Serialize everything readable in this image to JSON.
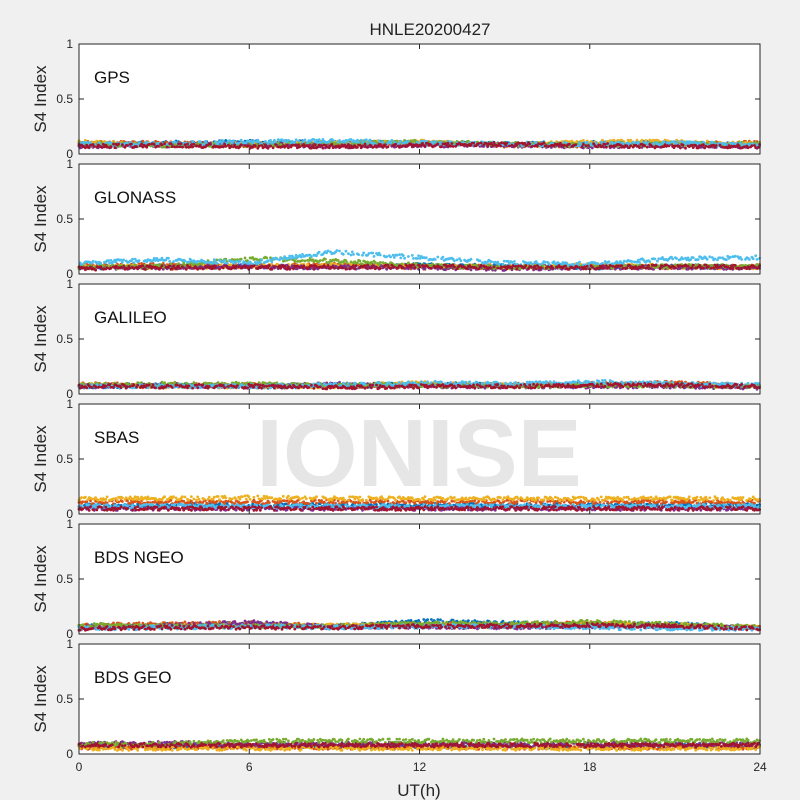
{
  "figure": {
    "title": "HNLE20200427",
    "xlabel": "UT(h)",
    "ylabel": "S4 Index",
    "watermark": "IONISE",
    "x_ticks": [
      "0",
      "6",
      "12",
      "18",
      "24"
    ],
    "y_ticks": [
      "0",
      "0.5",
      "1"
    ]
  },
  "colors": {
    "palette": [
      "#0072BD",
      "#D95319",
      "#EDB120",
      "#7E2F8E",
      "#77AC30",
      "#4DBEEE",
      "#A2142F"
    ],
    "axes_background": "#ffffff",
    "figure_background": "#f0f0f0"
  },
  "chart_data": [
    {
      "type": "scatter",
      "panel": "GPS",
      "xlim": [
        0,
        24
      ],
      "ylim": [
        0,
        1
      ],
      "grid": false,
      "series": [
        {
          "color": "#0072BD",
          "x": [
            0,
            3,
            6,
            9,
            12,
            15,
            18,
            21,
            24
          ],
          "y": [
            0.08,
            0.1,
            0.11,
            0.1,
            0.1,
            0.09,
            0.1,
            0.1,
            0.08
          ]
        },
        {
          "color": "#D95319",
          "x": [
            0,
            3,
            6,
            9,
            12,
            15,
            18,
            21,
            24
          ],
          "y": [
            0.1,
            0.1,
            0.08,
            0.09,
            0.1,
            0.08,
            0.08,
            0.09,
            0.1
          ]
        },
        {
          "color": "#EDB120",
          "x": [
            0,
            3,
            6,
            9,
            12,
            15,
            18,
            21,
            24
          ],
          "y": [
            0.11,
            0.08,
            0.09,
            0.1,
            0.11,
            0.08,
            0.11,
            0.11,
            0.09
          ]
        },
        {
          "color": "#7E2F8E",
          "x": [
            0,
            3,
            6,
            9,
            12,
            15,
            18,
            21,
            24
          ],
          "y": [
            0.07,
            0.08,
            0.09,
            0.07,
            0.08,
            0.08,
            0.07,
            0.08,
            0.07
          ]
        },
        {
          "color": "#77AC30",
          "x": [
            0,
            3,
            6,
            9,
            12,
            15,
            18,
            21,
            24
          ],
          "y": [
            0.09,
            0.08,
            0.08,
            0.1,
            0.11,
            0.09,
            0.08,
            0.09,
            0.09
          ]
        },
        {
          "color": "#4DBEEE",
          "x": [
            0,
            3,
            6,
            9,
            12,
            15,
            18,
            21,
            24
          ],
          "y": [
            0.09,
            0.09,
            0.11,
            0.12,
            0.1,
            0.09,
            0.09,
            0.1,
            0.08
          ]
        },
        {
          "color": "#A2142F",
          "x": [
            0,
            3,
            6,
            9,
            12,
            15,
            18,
            21,
            24
          ],
          "y": [
            0.07,
            0.08,
            0.07,
            0.07,
            0.08,
            0.09,
            0.08,
            0.07,
            0.07
          ]
        }
      ]
    },
    {
      "type": "scatter",
      "panel": "GLONASS",
      "xlim": [
        0,
        24
      ],
      "ylim": [
        0,
        1
      ],
      "grid": false,
      "series": [
        {
          "color": "#0072BD",
          "x": [
            0,
            3,
            6,
            9,
            12,
            15,
            18,
            21,
            24
          ],
          "y": [
            0.06,
            0.07,
            0.07,
            0.07,
            0.08,
            0.07,
            0.06,
            0.07,
            0.06
          ]
        },
        {
          "color": "#D95319",
          "x": [
            0,
            3,
            6,
            9,
            12,
            15,
            18,
            21,
            24
          ],
          "y": [
            0.08,
            0.08,
            0.07,
            0.08,
            0.06,
            0.07,
            0.07,
            0.06,
            0.07
          ]
        },
        {
          "color": "#EDB120",
          "x": [
            0,
            3,
            6,
            9,
            12,
            15,
            18,
            21,
            24
          ],
          "y": [
            0.07,
            0.06,
            0.07,
            0.08,
            0.07,
            0.06,
            0.08,
            0.07,
            0.06
          ]
        },
        {
          "color": "#7E2F8E",
          "x": [
            0,
            3,
            6,
            9,
            12,
            15,
            18,
            21,
            24
          ],
          "y": [
            0.05,
            0.06,
            0.07,
            0.06,
            0.06,
            0.05,
            0.06,
            0.06,
            0.06
          ]
        },
        {
          "color": "#77AC30",
          "x": [
            0,
            3,
            6,
            9,
            12,
            15,
            18,
            21,
            24
          ],
          "y": [
            0.06,
            0.07,
            0.14,
            0.12,
            0.08,
            0.06,
            0.07,
            0.07,
            0.07
          ]
        },
        {
          "color": "#4DBEEE",
          "x": [
            0,
            3,
            6,
            9,
            12,
            15,
            18,
            21,
            24
          ],
          "y": [
            0.1,
            0.13,
            0.1,
            0.2,
            0.15,
            0.1,
            0.09,
            0.14,
            0.15
          ]
        },
        {
          "color": "#A2142F",
          "x": [
            0,
            3,
            6,
            9,
            12,
            15,
            18,
            21,
            24
          ],
          "y": [
            0.05,
            0.06,
            0.06,
            0.06,
            0.07,
            0.06,
            0.06,
            0.07,
            0.06
          ]
        }
      ]
    },
    {
      "type": "scatter",
      "panel": "GALILEO",
      "xlim": [
        0,
        24
      ],
      "ylim": [
        0,
        1
      ],
      "grid": false,
      "series": [
        {
          "color": "#0072BD",
          "x": [
            0,
            3,
            6,
            9,
            12,
            15,
            18,
            21,
            24
          ],
          "y": [
            0.07,
            0.08,
            0.07,
            0.07,
            0.09,
            0.08,
            0.09,
            0.08,
            0.07
          ]
        },
        {
          "color": "#D95319",
          "x": [
            0,
            3,
            6,
            9,
            12,
            15,
            18,
            21,
            24
          ],
          "y": [
            0.09,
            0.08,
            0.08,
            0.07,
            0.08,
            0.08,
            0.09,
            0.1,
            0.07
          ]
        },
        {
          "color": "#EDB120",
          "x": [
            0,
            3,
            6,
            9,
            12,
            15,
            18,
            21,
            24
          ],
          "y": [
            0.08,
            0.07,
            0.07,
            0.07,
            0.1,
            0.08,
            0.08,
            0.08,
            0.07
          ]
        },
        {
          "color": "#7E2F8E",
          "x": [
            0,
            3,
            6,
            9,
            12,
            15,
            18,
            21,
            24
          ],
          "y": [
            0.07,
            0.08,
            0.07,
            0.09,
            0.07,
            0.07,
            0.07,
            0.07,
            0.06
          ]
        },
        {
          "color": "#77AC30",
          "x": [
            0,
            3,
            6,
            9,
            12,
            15,
            18,
            21,
            24
          ],
          "y": [
            0.08,
            0.09,
            0.09,
            0.08,
            0.08,
            0.07,
            0.08,
            0.08,
            0.07
          ]
        },
        {
          "color": "#4DBEEE",
          "x": [
            0,
            3,
            6,
            9,
            12,
            15,
            18,
            21,
            24
          ],
          "y": [
            0.07,
            0.07,
            0.07,
            0.08,
            0.1,
            0.09,
            0.11,
            0.09,
            0.08
          ]
        },
        {
          "color": "#A2142F",
          "x": [
            0,
            3,
            6,
            9,
            12,
            15,
            18,
            21,
            24
          ],
          "y": [
            0.07,
            0.07,
            0.07,
            0.06,
            0.07,
            0.07,
            0.08,
            0.08,
            0.07
          ]
        }
      ]
    },
    {
      "type": "scatter",
      "panel": "SBAS",
      "xlim": [
        0,
        24
      ],
      "ylim": [
        0,
        1
      ],
      "grid": false,
      "series": [
        {
          "color": "#0072BD",
          "x": [
            0,
            3,
            6,
            9,
            12,
            15,
            18,
            21,
            24
          ],
          "y": [
            0.08,
            0.08,
            0.08,
            0.08,
            0.08,
            0.08,
            0.08,
            0.08,
            0.08
          ]
        },
        {
          "color": "#D95319",
          "x": [
            0,
            3,
            6,
            9,
            12,
            15,
            18,
            21,
            24
          ],
          "y": [
            0.11,
            0.11,
            0.11,
            0.11,
            0.11,
            0.11,
            0.11,
            0.11,
            0.11
          ]
        },
        {
          "color": "#EDB120",
          "x": [
            0,
            3,
            6,
            9,
            12,
            15,
            18,
            21,
            24
          ],
          "y": [
            0.14,
            0.14,
            0.15,
            0.14,
            0.14,
            0.14,
            0.14,
            0.14,
            0.14
          ]
        },
        {
          "color": "#7E2F8E",
          "x": [
            0,
            3,
            6,
            9,
            12,
            15,
            18,
            21,
            24
          ],
          "y": [
            0.05,
            0.05,
            0.05,
            0.05,
            0.05,
            0.05,
            0.05,
            0.05,
            0.05
          ]
        },
        {
          "color": "#4DBEEE",
          "x": [
            0,
            3,
            6,
            9,
            12,
            15,
            18,
            21,
            24
          ],
          "y": [
            0.07,
            0.07,
            0.07,
            0.07,
            0.07,
            0.07,
            0.07,
            0.07,
            0.07
          ]
        },
        {
          "color": "#A2142F",
          "x": [
            0,
            3,
            6,
            9,
            12,
            15,
            18,
            21,
            24
          ],
          "y": [
            0.05,
            0.05,
            0.05,
            0.05,
            0.05,
            0.05,
            0.05,
            0.05,
            0.05
          ]
        }
      ]
    },
    {
      "type": "scatter",
      "panel": "BDS NGEO",
      "xlim": [
        0,
        24
      ],
      "ylim": [
        0,
        1
      ],
      "grid": false,
      "series": [
        {
          "color": "#0072BD",
          "x": [
            0,
            3,
            6,
            9,
            12,
            15,
            18,
            21,
            24
          ],
          "y": [
            0.07,
            0.08,
            0.09,
            0.07,
            0.12,
            0.1,
            0.08,
            0.09,
            0.06
          ]
        },
        {
          "color": "#D95319",
          "x": [
            0,
            3,
            6,
            9,
            12,
            15,
            18,
            21,
            24
          ],
          "y": [
            0.08,
            0.09,
            0.1,
            0.07,
            0.09,
            0.08,
            0.1,
            0.07,
            0.06
          ]
        },
        {
          "color": "#EDB120",
          "x": [
            0,
            3,
            6,
            9,
            12,
            15,
            18,
            21,
            24
          ],
          "y": [
            0.06,
            0.07,
            0.08,
            0.08,
            0.08,
            0.07,
            0.1,
            0.08,
            0.06
          ]
        },
        {
          "color": "#7E2F8E",
          "x": [
            0,
            3,
            6,
            9,
            12,
            15,
            18,
            21,
            24
          ],
          "y": [
            0.06,
            0.07,
            0.11,
            0.06,
            0.07,
            0.06,
            0.07,
            0.07,
            0.05
          ]
        },
        {
          "color": "#77AC30",
          "x": [
            0,
            3,
            6,
            9,
            12,
            15,
            18,
            21,
            24
          ],
          "y": [
            0.08,
            0.07,
            0.07,
            0.07,
            0.1,
            0.09,
            0.11,
            0.09,
            0.06
          ]
        },
        {
          "color": "#4DBEEE",
          "x": [
            0,
            3,
            6,
            9,
            12,
            15,
            18,
            21,
            24
          ],
          "y": [
            0.05,
            0.06,
            0.07,
            0.06,
            0.07,
            0.07,
            0.06,
            0.05,
            0.05
          ]
        },
        {
          "color": "#A2142F",
          "x": [
            0,
            3,
            6,
            9,
            12,
            15,
            18,
            21,
            24
          ],
          "y": [
            0.05,
            0.06,
            0.06,
            0.06,
            0.07,
            0.07,
            0.08,
            0.07,
            0.05
          ]
        }
      ]
    },
    {
      "type": "scatter",
      "panel": "BDS GEO",
      "xlim": [
        0,
        24
      ],
      "ylim": [
        0,
        1
      ],
      "grid": false,
      "series": [
        {
          "color": "#0072BD",
          "x": [
            0,
            3,
            6,
            9,
            12,
            15,
            18,
            21,
            24
          ],
          "y": [
            0.07,
            0.07,
            0.07,
            0.07,
            0.07,
            0.07,
            0.07,
            0.07,
            0.07
          ]
        },
        {
          "color": "#D95319",
          "x": [
            0,
            3,
            6,
            9,
            12,
            15,
            18,
            21,
            24
          ],
          "y": [
            0.06,
            0.06,
            0.06,
            0.06,
            0.06,
            0.06,
            0.06,
            0.06,
            0.06
          ]
        },
        {
          "color": "#EDB120",
          "x": [
            0,
            3,
            6,
            9,
            12,
            15,
            18,
            21,
            24
          ],
          "y": [
            0.05,
            0.05,
            0.05,
            0.05,
            0.05,
            0.05,
            0.05,
            0.05,
            0.05
          ]
        },
        {
          "color": "#7E2F8E",
          "x": [
            0,
            3,
            6,
            9,
            12,
            15,
            18,
            21,
            24
          ],
          "y": [
            0.09,
            0.1,
            0.09,
            0.09,
            0.09,
            0.09,
            0.09,
            0.09,
            0.09
          ]
        },
        {
          "color": "#77AC30",
          "x": [
            0,
            3,
            6,
            9,
            12,
            15,
            18,
            21,
            24
          ],
          "y": [
            0.09,
            0.09,
            0.12,
            0.12,
            0.12,
            0.12,
            0.12,
            0.12,
            0.12
          ]
        },
        {
          "color": "#A2142F",
          "x": [
            0,
            3,
            6,
            9,
            12,
            15,
            18,
            21,
            24
          ],
          "y": [
            0.08,
            0.08,
            0.08,
            0.08,
            0.08,
            0.08,
            0.08,
            0.08,
            0.08
          ]
        }
      ]
    }
  ]
}
